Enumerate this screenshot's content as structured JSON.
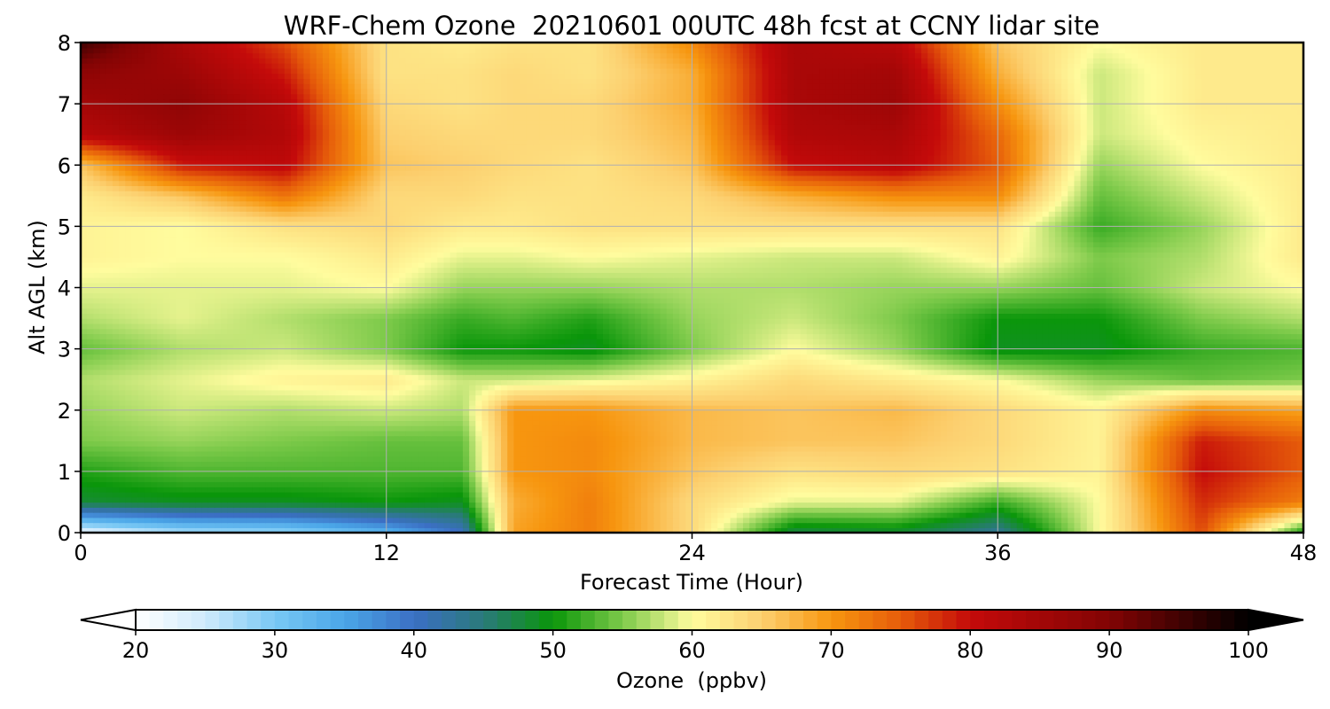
{
  "chart_data": {
    "type": "heatmap",
    "title": "WRF-Chem Ozone  20210601 00UTC 48h fcst at CCNY lidar site",
    "xlabel": "Forecast Time (Hour)",
    "ylabel": "Alt AGL (km)",
    "xlim": [
      0,
      48
    ],
    "ylim": [
      0,
      8
    ],
    "x_ticks": [
      0,
      12,
      24,
      36,
      48
    ],
    "y_ticks": [
      0,
      1,
      2,
      3,
      4,
      5,
      6,
      7,
      8
    ],
    "grid": true,
    "colorbar": {
      "label": "Ozone  (ppbv)",
      "min": 20,
      "max": 100,
      "ticks": [
        20,
        30,
        40,
        50,
        60,
        70,
        80,
        90,
        100
      ],
      "extend": "both",
      "color_stops": [
        {
          "value": 20,
          "color": "#ffffff"
        },
        {
          "value": 25,
          "color": "#cfeafc"
        },
        {
          "value": 30,
          "color": "#79c8f4"
        },
        {
          "value": 35,
          "color": "#4aa6e8"
        },
        {
          "value": 40,
          "color": "#3b6fc4"
        },
        {
          "value": 45,
          "color": "#2a7a7a"
        },
        {
          "value": 50,
          "color": "#0a960a"
        },
        {
          "value": 55,
          "color": "#7dca4a"
        },
        {
          "value": 60,
          "color": "#fffc9e"
        },
        {
          "value": 65,
          "color": "#fcd070"
        },
        {
          "value": 70,
          "color": "#f7960f"
        },
        {
          "value": 75,
          "color": "#e65c0a"
        },
        {
          "value": 80,
          "color": "#c40a0a"
        },
        {
          "value": 90,
          "color": "#820404"
        },
        {
          "value": 100,
          "color": "#000000"
        }
      ]
    },
    "x": [
      0,
      4,
      8,
      12,
      15,
      17,
      20,
      24,
      28,
      32,
      36,
      40,
      44,
      48
    ],
    "y": [
      0,
      0.5,
      1,
      1.5,
      2,
      2.5,
      3,
      3.5,
      4,
      4.5,
      5,
      5.5,
      6,
      6.5,
      7,
      7.5,
      8
    ],
    "z": [
      [
        22,
        27,
        28,
        33,
        40,
        69,
        72,
        64,
        47,
        48,
        43,
        60,
        76,
        50
      ],
      [
        48,
        49,
        49,
        50,
        49,
        68,
        72,
        64,
        59,
        59,
        52,
        60,
        78,
        72
      ],
      [
        51,
        53,
        53,
        53,
        53,
        70,
        71,
        66,
        63,
        64,
        63,
        61,
        80,
        75
      ],
      [
        55,
        56,
        55,
        54,
        54,
        70,
        71,
        67,
        66,
        66,
        64,
        61,
        79,
        75
      ],
      [
        56,
        58,
        57,
        58,
        57,
        70,
        70,
        67,
        66,
        67,
        64,
        61,
        71,
        69
      ],
      [
        57,
        59,
        61,
        62,
        58,
        58,
        59,
        61,
        64,
        62,
        60,
        56,
        54,
        55
      ],
      [
        54,
        57,
        58,
        55,
        50,
        50,
        49,
        55,
        60,
        56,
        49,
        49,
        52,
        53
      ],
      [
        57,
        59,
        57,
        55,
        52,
        53,
        51,
        56,
        58,
        55,
        50,
        50,
        55,
        57
      ],
      [
        59,
        59,
        59,
        60,
        56,
        56,
        56,
        57,
        57,
        56,
        56,
        54,
        58,
        60
      ],
      [
        61,
        60,
        60,
        62,
        59,
        59,
        60,
        59,
        58,
        58,
        61,
        55,
        57,
        62
      ],
      [
        61,
        60,
        63,
        64,
        62,
        62,
        63,
        63,
        63,
        63,
        63,
        52,
        56,
        62
      ],
      [
        62,
        66,
        73,
        64,
        64,
        63,
        63,
        64,
        68,
        71,
        71,
        54,
        58,
        62
      ],
      [
        66,
        79,
        81,
        66,
        65,
        64,
        63,
        66,
        80,
        82,
        75,
        56,
        60,
        62
      ],
      [
        82,
        86,
        83,
        65,
        64,
        64,
        64,
        67,
        83,
        84,
        74,
        58,
        61,
        62
      ],
      [
        85,
        88,
        82,
        64,
        63,
        64,
        64,
        68,
        84,
        86,
        71,
        58,
        62,
        62
      ],
      [
        88,
        86,
        79,
        63,
        63,
        64,
        63,
        68,
        84,
        85,
        68,
        58,
        62,
        62
      ],
      [
        95,
        84,
        76,
        63,
        62,
        63,
        63,
        71,
        84,
        82,
        66,
        60,
        62,
        62
      ]
    ]
  }
}
